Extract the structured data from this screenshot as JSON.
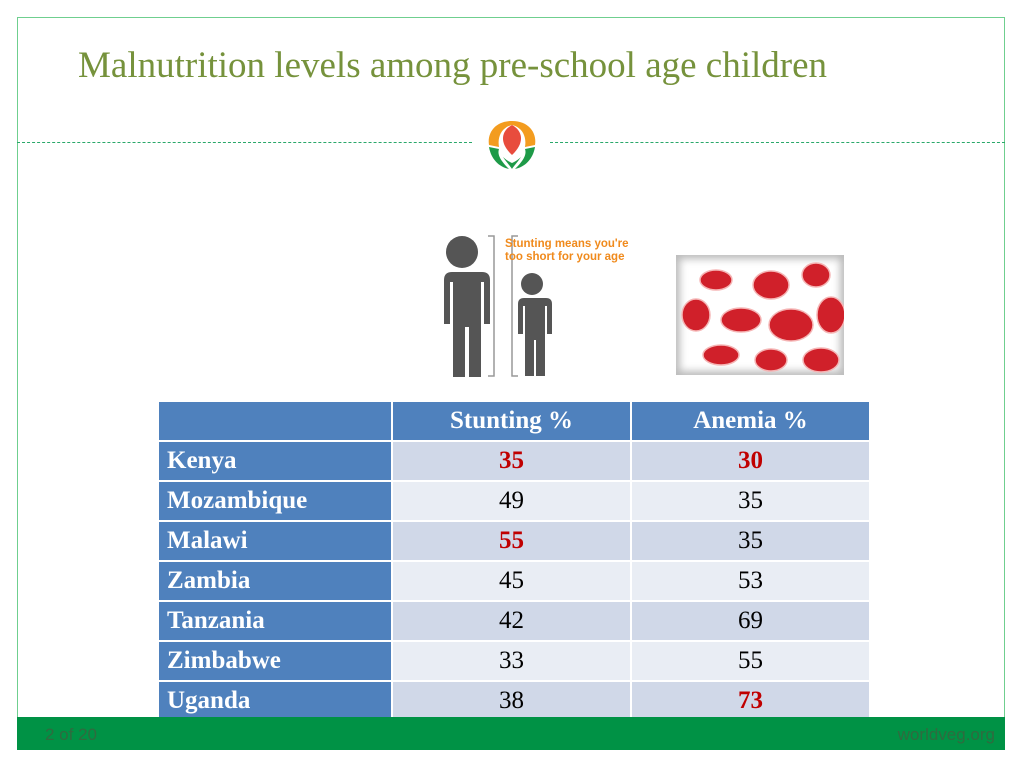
{
  "title": "Malnutrition levels among pre-school age children",
  "stunting_caption": "Stunting means you're too short for your age",
  "table": {
    "headers": [
      "",
      "Stunting %",
      "Anemia %"
    ],
    "rows": [
      {
        "country": "Kenya",
        "stunting": "35",
        "anemia": "30",
        "hs": true,
        "ha": true
      },
      {
        "country": "Mozambique",
        "stunting": "49",
        "anemia": "35",
        "hs": false,
        "ha": false
      },
      {
        "country": "Malawi",
        "stunting": "55",
        "anemia": "35",
        "hs": true,
        "ha": false
      },
      {
        "country": "Zambia",
        "stunting": "45",
        "anemia": "53",
        "hs": false,
        "ha": false
      },
      {
        "country": "Tanzania",
        "stunting": "42",
        "anemia": "69",
        "hs": false,
        "ha": false
      },
      {
        "country": "Zimbabwe",
        "stunting": "33",
        "anemia": "55",
        "hs": false,
        "ha": false
      },
      {
        "country": "Uganda",
        "stunting": "38",
        "anemia": "73",
        "hs": false,
        "ha": true
      }
    ]
  },
  "footer": {
    "page": "2 of 20",
    "site": "worldveg.org"
  },
  "colors": {
    "title": "#76923c",
    "header": "#4f81bd",
    "highlight": "#c00000",
    "footer": "#009245"
  }
}
